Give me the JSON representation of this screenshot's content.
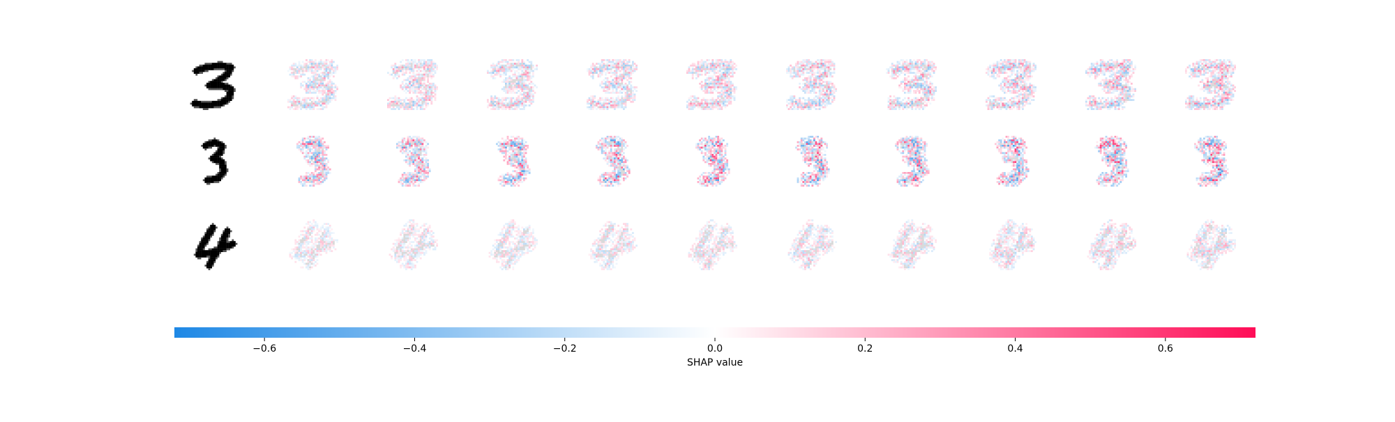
{
  "chart_data": {
    "type": "heatmap",
    "title": "",
    "rows": [
      {
        "original_digit": "3",
        "shap_panels": 10
      },
      {
        "original_digit": "3",
        "shap_panels": 10
      },
      {
        "original_digit": "4",
        "shap_panels": 10
      }
    ],
    "colorbar": {
      "label": "SHAP value",
      "range": [
        -0.72,
        0.72
      ],
      "ticks": [
        -0.6,
        -0.4,
        -0.2,
        0.0,
        0.2,
        0.4,
        0.6
      ],
      "tick_labels": [
        "−0.6",
        "−0.4",
        "−0.2",
        "0.0",
        "0.2",
        "0.4",
        "0.6"
      ],
      "colors": {
        "negative": "#1e88e5",
        "zero": "#ffffff",
        "positive": "#ff0d57"
      }
    }
  }
}
